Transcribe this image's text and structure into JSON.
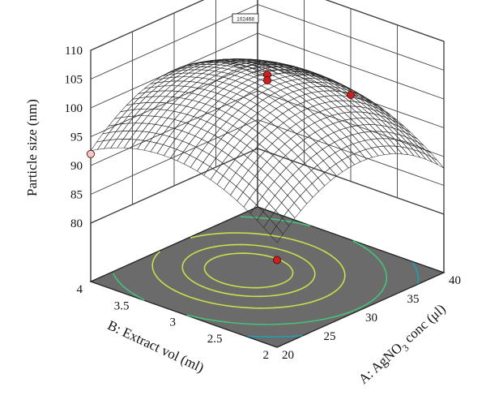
{
  "chart_data": {
    "type": "surface",
    "flag_label": "102468",
    "zlabel": "Particle size (nm)",
    "xlabel_prefix": "A: AgNO",
    "xlabel_sub": "3",
    "xlabel_suffix": " conc (μl)",
    "ylabel": "B: Extract vol (ml)",
    "x_range": [
      20,
      40
    ],
    "y_range": [
      2,
      4
    ],
    "z_range": [
      80,
      110
    ],
    "x_ticks": [
      "20",
      "25",
      "30",
      "35",
      "40"
    ],
    "y_ticks": [
      "2",
      "2.5",
      "3",
      "3.5",
      "4"
    ],
    "z_ticks": [
      "80",
      "85",
      "90",
      "95",
      "100",
      "105",
      "110"
    ],
    "surface_model": {
      "center_x": 30,
      "center_y": 3.2,
      "peak": 103.8,
      "corner_min": 88,
      "low_corner_x": 20,
      "low_corner_y": 2
    },
    "design_points": [
      {
        "x": 20,
        "y": 4,
        "z": 92,
        "marker": "below-surface"
      },
      {
        "x": 30,
        "y": 3,
        "z": 105,
        "marker": "above-surface"
      },
      {
        "x": 30,
        "y": 3,
        "z": 104,
        "marker": "above-surface"
      },
      {
        "x": 40,
        "y": 3,
        "z": 95,
        "marker": "above-surface"
      },
      {
        "x": 20,
        "y": 2,
        "z": 85,
        "marker": "above-surface"
      }
    ],
    "contour_levels": [
      88,
      92,
      96,
      100,
      102,
      103
    ],
    "colors": {
      "low": "#3b2f8f",
      "mid": "#2fb3c4",
      "high": "#f2e64a",
      "floor": "#6b6b6b",
      "point_above": "#cc1f1f",
      "point_below": "#f4c7c2",
      "contour_low": "#1f9fb3",
      "contour_mid": "#46c27a",
      "contour_high": "#c8e04a"
    }
  }
}
